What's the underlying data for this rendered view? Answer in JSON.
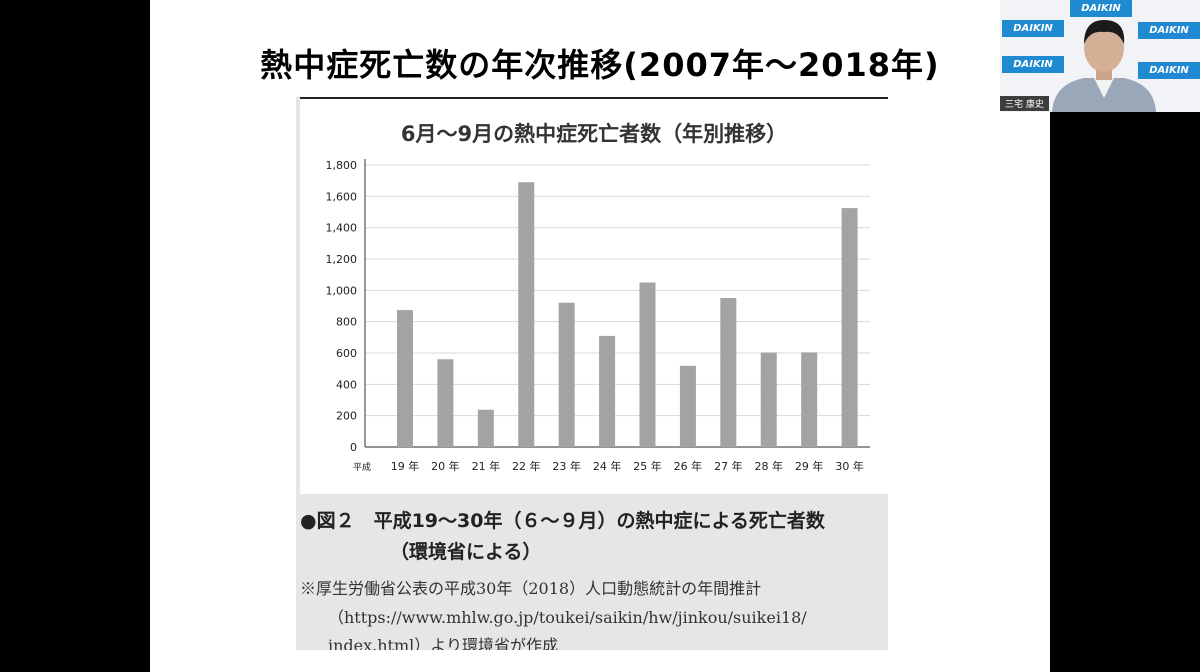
{
  "slide": {
    "title": "熱中症死亡数の年次推移(2007年～2018年)"
  },
  "chart_data": {
    "type": "bar",
    "title": "6月～9月の熱中症死亡者数（年別推移）",
    "xlabel": "",
    "ylabel": "",
    "x_prefix": "平成",
    "categories": [
      "19 年",
      "20 年",
      "21 年",
      "22 年",
      "23 年",
      "24 年",
      "25 年",
      "26 年",
      "27 年",
      "28 年",
      "29 年",
      "30 年"
    ],
    "values": [
      874,
      560,
      238,
      1690,
      921,
      709,
      1050,
      518,
      951,
      603,
      604,
      1525
    ],
    "ylim": [
      0,
      1800
    ],
    "yticks": [
      0,
      200,
      400,
      600,
      800,
      1000,
      1200,
      1400,
      1600,
      1800
    ],
    "ytick_labels": [
      "0",
      "200",
      "400",
      "600",
      "800",
      "1,000",
      "1,200",
      "1,400",
      "1,600",
      "1,800"
    ],
    "grid": true,
    "bar_color": "#a3a3a3",
    "grid_color": "#d8d8d8"
  },
  "caption": {
    "line1": "●図２　平成19～30年（６～９月）の熱中症による死亡者数",
    "line2": "（環境省による）"
  },
  "note": {
    "line1": "※厚生労働省公表の平成30年（2018）人口動態統計の年間推計",
    "line2": "（https://www.mhlw.go.jp/toukei/saikin/hw/jinkou/suikei18/",
    "line3": "index.html）より環境省が作成"
  },
  "video": {
    "speaker_name": "三宅 康史",
    "banner_text": "DAIKIN",
    "brand_color": "#1f8ad2"
  }
}
